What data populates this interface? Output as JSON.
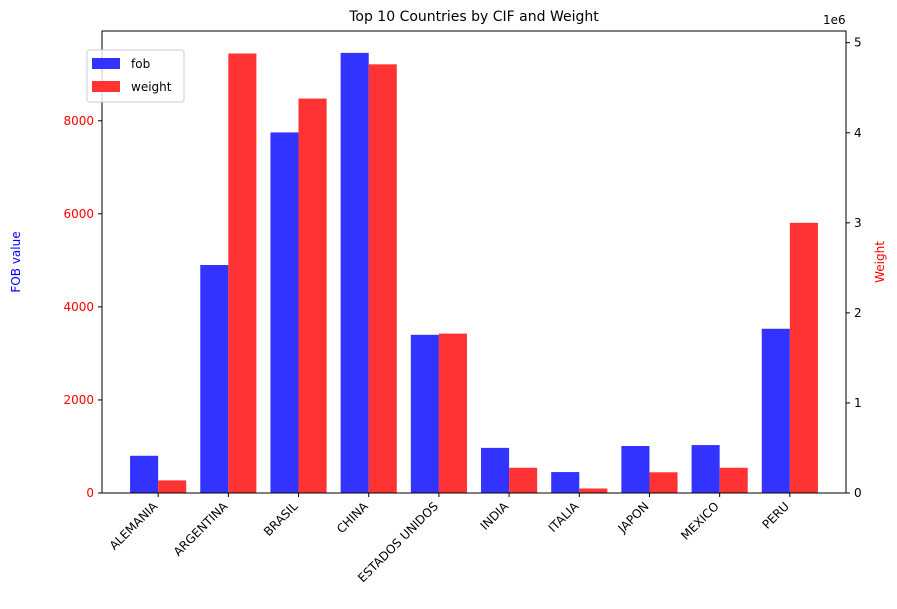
{
  "chart_data": {
    "type": "bar",
    "title": "Top 10 Countries by CIF and Weight",
    "categories": [
      "ALEMANIA",
      "ARGENTINA",
      "BRASIL",
      "CHINA",
      "ESTADOS UNIDOS",
      "INDIA",
      "ITALIA",
      "JAPON",
      "MEXICO",
      "PERU"
    ],
    "series": [
      {
        "name": "fob",
        "axis": "left",
        "color": "#3333ff",
        "values": [
          800,
          4900,
          7750,
          9460,
          3400,
          970,
          450,
          1010,
          1030,
          3530
        ]
      },
      {
        "name": "weight",
        "axis": "right",
        "color": "#ff3333",
        "values": [
          140000,
          4880000,
          4380000,
          4760000,
          1770000,
          280000,
          50000,
          230000,
          280000,
          3000000
        ]
      }
    ],
    "left_axis": {
      "label": "FOB value",
      "label_color": "#0000ff",
      "tick_color": "#ff0000",
      "ylim": [
        0,
        9930
      ],
      "ticks": [
        0,
        2000,
        4000,
        6000,
        8000
      ]
    },
    "right_axis": {
      "label": "Weight",
      "label_color": "#ff0000",
      "tick_color": "#000000",
      "ylim": [
        0,
        5130000
      ],
      "ticks": [
        0,
        1,
        2,
        3,
        4,
        5
      ],
      "offset_text": "1e6",
      "scale": 1000000
    },
    "legend": {
      "position": "upper-left"
    },
    "grid": false
  }
}
